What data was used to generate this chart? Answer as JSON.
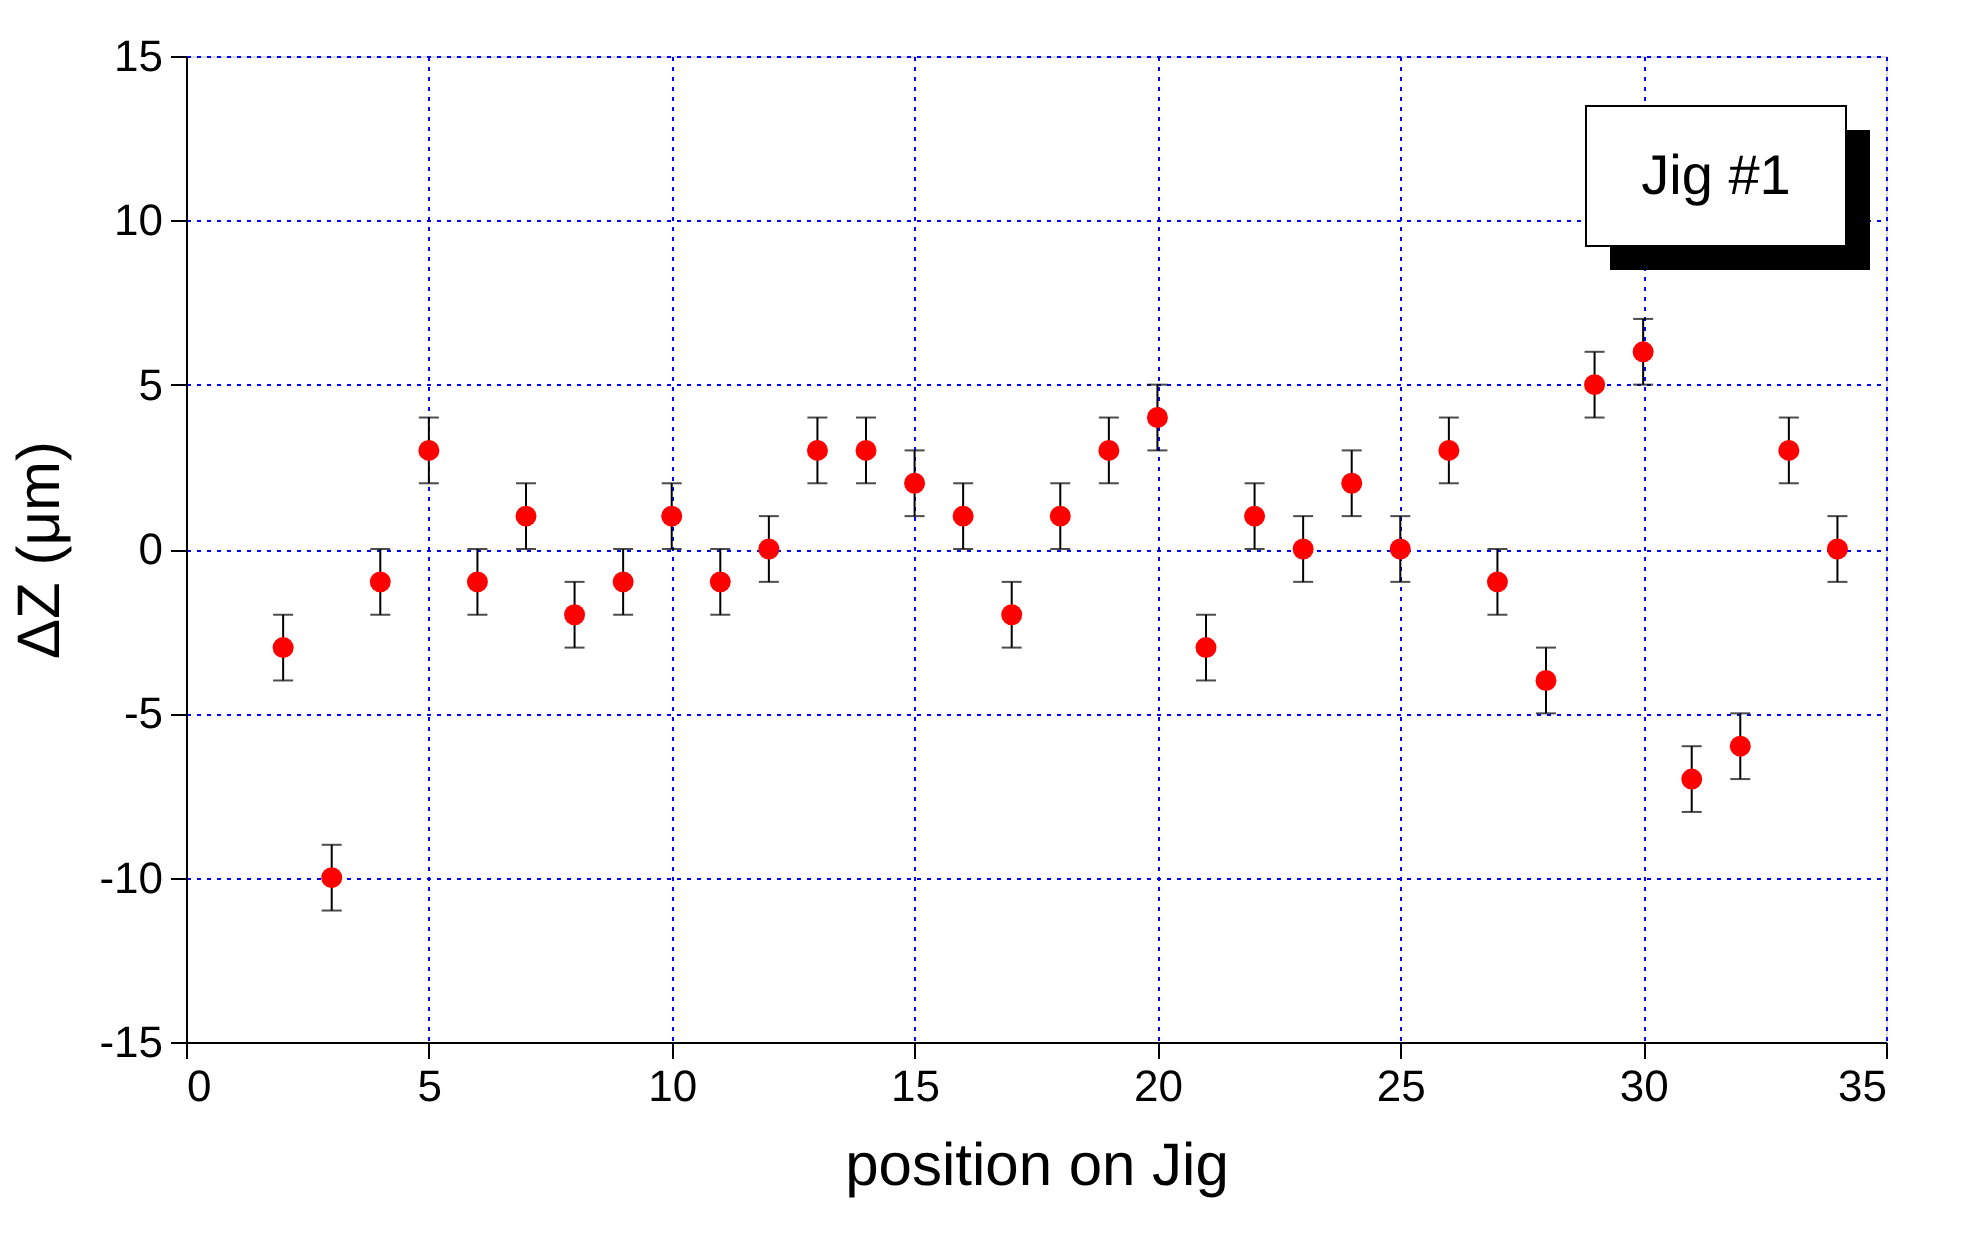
{
  "chart_data": {
    "type": "scatter",
    "xlabel": "position on Jig",
    "ylabel": "ΔZ (μm)",
    "x": [
      2,
      3,
      4,
      5,
      6,
      7,
      8,
      9,
      10,
      11,
      12,
      13,
      14,
      15,
      16,
      17,
      18,
      19,
      20,
      21,
      22,
      23,
      24,
      25,
      26,
      27,
      28,
      29,
      30,
      31,
      32,
      33,
      34
    ],
    "series": [
      {
        "color": "#ff0000",
        "values": [
          -3,
          -10,
          -1,
          3,
          -1,
          1,
          -2,
          -1,
          1,
          -1,
          0,
          3,
          3,
          2,
          1,
          -2,
          1,
          3,
          4,
          -3,
          1,
          0,
          2,
          0,
          3,
          -1,
          -4,
          5,
          6,
          -7,
          -6,
          3,
          0
        ],
        "errors": [
          1,
          1,
          1,
          1,
          1,
          1,
          1,
          1,
          1,
          1,
          1,
          1,
          1,
          1,
          1,
          1,
          1,
          1,
          1,
          1,
          1,
          1,
          1,
          1,
          1,
          1,
          1,
          1,
          1,
          1,
          1,
          1,
          1
        ]
      }
    ],
    "xlim": [
      0,
      35
    ],
    "xticks": [
      0,
      5,
      10,
      15,
      20,
      25,
      30,
      35
    ],
    "ylim": [
      -15,
      15
    ],
    "yticks": [
      -15,
      -10,
      -5,
      0,
      5,
      10,
      15
    ],
    "grid": true,
    "marker": "circle",
    "annotations": [
      "Jig #1"
    ]
  }
}
